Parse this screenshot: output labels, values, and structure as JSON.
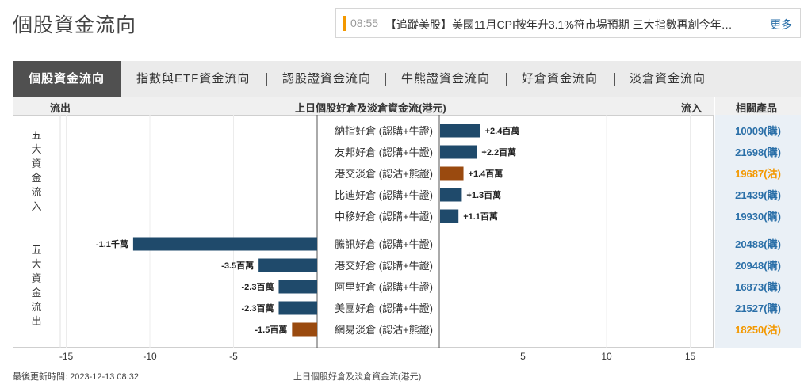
{
  "page": {
    "title": "個股資金流向"
  },
  "ticker": {
    "time": "08:55",
    "text": "【追蹤美股】美國11月CPI按年升3.1%符市場預期 三大指數再創今年…",
    "more": "更多"
  },
  "tabs": [
    {
      "label": "個股資金流向"
    },
    {
      "label": "指數與ETF資金流向"
    },
    {
      "label": "認股證資金流向"
    },
    {
      "label": "牛熊證資金流向"
    },
    {
      "label": "好倉資金流向"
    },
    {
      "label": "淡倉資金流向"
    }
  ],
  "header": {
    "outflow": "流出",
    "title": "上日個股好倉及淡倉資金流(港元)",
    "inflow": "流入",
    "related": "相關產品"
  },
  "groups": {
    "top": "五大資金流入",
    "bottom": "五大資金流出"
  },
  "colors": {
    "bull": "#1f4a6b",
    "bear": "#9a4a0f",
    "bull_code": "#2a6fa8",
    "bear_code": "#f39800"
  },
  "chart_data": {
    "type": "bar",
    "orientation": "horizontal",
    "title": "上日個股好倉及淡倉資金流(港元)",
    "xlim": [
      -17,
      16
    ],
    "xticks": [
      -15,
      -10,
      -5,
      5,
      10,
      15
    ],
    "unit": "百萬",
    "categories": [
      "納指好倉 (認購+牛證)",
      "友邦好倉 (認購+牛證)",
      "港交淡倉 (認沽+熊證)",
      "比迪好倉 (認購+牛證)",
      "中移好倉 (認購+牛證)",
      "騰訊好倉 (認購+牛證)",
      "港交好倉 (認購+牛證)",
      "阿里好倉 (認購+牛證)",
      "美團好倉 (認購+牛證)",
      "網易淡倉 (認沽+熊證)"
    ],
    "values": [
      2.4,
      2.2,
      1.4,
      1.3,
      1.1,
      -11,
      -3.5,
      -2.3,
      -2.3,
      -1.5
    ],
    "value_labels": [
      "+2.4百萬",
      "+2.2百萬",
      "+1.4百萬",
      "+1.3百萬",
      "+1.1百萬",
      "-1.1千萬",
      "-3.5百萬",
      "-2.3百萬",
      "-2.3百萬",
      "-1.5百萬"
    ],
    "kinds": [
      "bull",
      "bull",
      "bear",
      "bull",
      "bull",
      "bull",
      "bull",
      "bull",
      "bull",
      "bear"
    ],
    "products": [
      "10009(購)",
      "21698(購)",
      "19687(沽)",
      "21439(購)",
      "19930(購)",
      "20488(購)",
      "20948(購)",
      "16873(購)",
      "21527(購)",
      "18250(沽)"
    ]
  },
  "footer": {
    "updated": "最後更新時間: 2023-12-13 08:32",
    "caption": "上日個股好倉及淡倉資金流(港元)"
  }
}
